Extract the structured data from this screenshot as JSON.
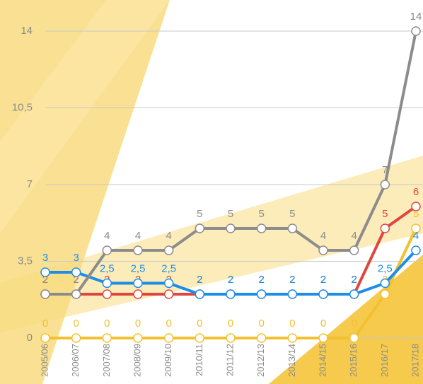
{
  "chart_data": {
    "type": "line",
    "categories": [
      "2005/06",
      "2006/07",
      "2007/08",
      "2008/09",
      "2009/10",
      "2010/11",
      "2011/12",
      "2012/13",
      "2013/14",
      "2014/15",
      "2015/16",
      "2016/17",
      "2017/18"
    ],
    "series": [
      {
        "name": "yellow",
        "color": "#f3c12e",
        "values": [
          0,
          0,
          0,
          0,
          0,
          0,
          0,
          0,
          0,
          0,
          0,
          2,
          5
        ]
      },
      {
        "name": "red",
        "color": "#e0463f",
        "values": [
          2,
          2,
          2,
          2,
          2,
          2,
          2,
          2,
          2,
          2,
          2,
          5,
          6
        ]
      },
      {
        "name": "blue",
        "color": "#1c8ee8",
        "values": [
          3,
          3,
          2.5,
          2.5,
          2.5,
          2,
          2,
          2,
          2,
          2,
          2,
          2.5,
          4
        ],
        "value_labels": [
          "3",
          "3",
          "2,5",
          "2,5",
          "2,5",
          "2",
          "2",
          "2",
          "2",
          "2",
          "2",
          "2,5",
          "4"
        ]
      },
      {
        "name": "gray",
        "color": "#8c8c8c",
        "values": [
          2,
          2,
          4,
          4,
          4,
          5,
          5,
          5,
          5,
          4,
          4,
          7,
          14
        ]
      }
    ],
    "ylim": [
      0,
      14
    ],
    "yticks": [
      0,
      {
        "value": 3.5,
        "label": "3,5"
      },
      7,
      {
        "value": 10.5,
        "label": "10,5"
      },
      14
    ],
    "grid": true
  }
}
